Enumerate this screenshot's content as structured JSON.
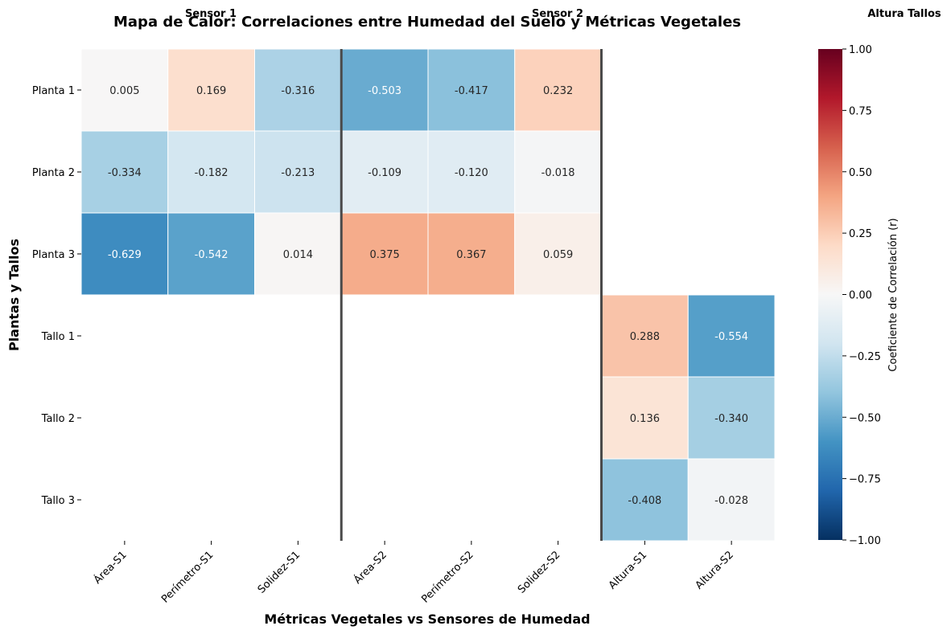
{
  "chart_data": {
    "type": "heatmap",
    "title": "Mapa de Calor: Correlaciones entre Humedad del Suelo y Métricas Vegetales",
    "xlabel": "Métricas Vegetales vs Sensores de Humedad",
    "ylabel": "Plantas y Tallos",
    "group_labels": [
      "Sensor 1",
      "Sensor 2",
      "Altura Tallos"
    ],
    "columns": [
      "Área-S1",
      "Perímetro-S1",
      "Solidez-S1",
      "Área-S2",
      "Perímetro-S2",
      "Solidez-S2",
      "Altura-S1",
      "Altura-S2"
    ],
    "rows": [
      "Planta 1",
      "Planta 2",
      "Planta 3",
      "Tallo 1",
      "Tallo 2",
      "Tallo 3"
    ],
    "values": [
      [
        0.005,
        0.169,
        -0.316,
        -0.503,
        -0.417,
        0.232,
        null,
        null
      ],
      [
        -0.334,
        -0.182,
        -0.213,
        -0.109,
        -0.12,
        -0.018,
        null,
        null
      ],
      [
        -0.629,
        -0.542,
        0.014,
        0.375,
        0.367,
        0.059,
        null,
        null
      ],
      [
        null,
        null,
        null,
        null,
        null,
        null,
        0.288,
        -0.554
      ],
      [
        null,
        null,
        null,
        null,
        null,
        null,
        0.136,
        -0.34
      ],
      [
        null,
        null,
        null,
        null,
        null,
        null,
        -0.408,
        -0.028
      ]
    ],
    "value_labels": [
      [
        "0.005",
        "0.169",
        "-0.316",
        "-0.503",
        "-0.417",
        "0.232",
        "",
        ""
      ],
      [
        "-0.334",
        "-0.182",
        "-0.213",
        "-0.109",
        "-0.120",
        "-0.018",
        "",
        ""
      ],
      [
        "-0.629",
        "-0.542",
        "0.014",
        "0.375",
        "0.367",
        "0.059",
        "",
        ""
      ],
      [
        "",
        "",
        "",
        "",
        "",
        "",
        "0.288",
        "-0.554"
      ],
      [
        "",
        "",
        "",
        "",
        "",
        "",
        "0.136",
        "-0.340"
      ],
      [
        "",
        "",
        "",
        "",
        "",
        "",
        "-0.408",
        "-0.028"
      ]
    ],
    "colorbar": {
      "label": "Coeficiente de Correlación (r)",
      "range": [
        -1,
        1
      ],
      "ticks": [
        "1.00",
        "0.75",
        "0.50",
        "0.25",
        "0.00",
        "−0.25",
        "−0.50",
        "−0.75",
        "−1.00"
      ],
      "colormap": "RdBu_r"
    },
    "separators_after_column": [
      3,
      6
    ]
  }
}
